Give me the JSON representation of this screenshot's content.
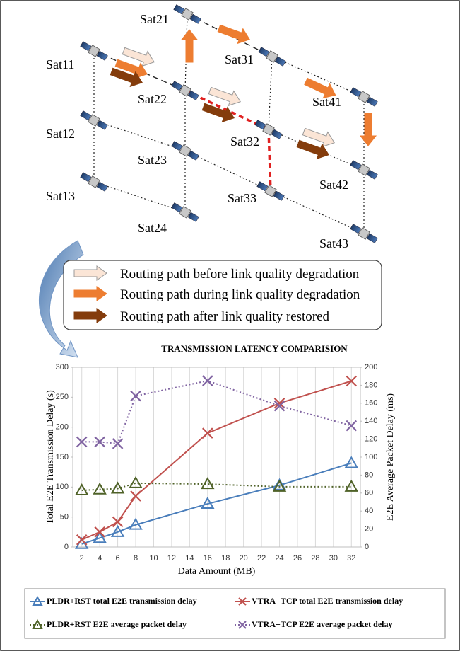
{
  "diagram": {
    "nodes": [
      {
        "label": "Sat21"
      },
      {
        "label": "Sat31"
      },
      {
        "label": "Sat41"
      },
      {
        "label": "Sat11"
      },
      {
        "label": "Sat22"
      },
      {
        "label": "Sat32"
      },
      {
        "label": "Sat42"
      },
      {
        "label": "Sat12"
      },
      {
        "label": "Sat23"
      },
      {
        "label": "Sat33"
      },
      {
        "label": "Sat43"
      },
      {
        "label": "Sat13"
      },
      {
        "label": "Sat24"
      }
    ],
    "legend": [
      "Routing path before link quality degradation",
      "Routing path during link quality degradation",
      "Routing path after link quality restored"
    ]
  },
  "chart_data": {
    "type": "line",
    "title": "TRANSMISSION LATENCY COMPARISION",
    "x_label": "Data Amount (MB)",
    "y_label": "Total E2E Transmission Delay (s)",
    "y2_label": "E2E Average Packet Delay (ms)",
    "x": [
      2,
      4,
      6,
      8,
      16,
      24,
      32
    ],
    "xlim": [
      1,
      33
    ],
    "xticks": [
      2,
      4,
      6,
      8,
      10,
      12,
      14,
      16,
      18,
      20,
      22,
      24,
      26,
      28,
      30,
      32
    ],
    "ylim": [
      0,
      300
    ],
    "yticks": [
      0,
      50,
      100,
      150,
      200,
      250,
      300
    ],
    "y2lim": [
      0,
      200
    ],
    "y2ticks": [
      0,
      20,
      40,
      60,
      80,
      100,
      120,
      140,
      160,
      180,
      200
    ],
    "grid": "x",
    "series": [
      {
        "name": "PLDR+RST total E2E transmission delay",
        "color": "#4a7ebb",
        "marker": "triangle",
        "dash": "solid",
        "values": [
          5,
          15,
          25,
          37,
          72,
          103,
          140
        ]
      },
      {
        "name": "VTRA+TCP total E2E transmission delay",
        "color": "#c0504d",
        "marker": "x",
        "dash": "solid",
        "values": [
          12,
          25,
          42,
          85,
          190,
          240,
          277
        ]
      },
      {
        "name": "PLDR+RST E2E average packet delay",
        "color": "#4f6228",
        "marker": "triangle",
        "dash": "dotted",
        "axis": "y2",
        "values": [
          63,
          64,
          65,
          71,
          70,
          67,
          67
        ]
      },
      {
        "name": "VTRA+TCP E2E average packet delay",
        "color": "#8064a2",
        "marker": "x",
        "dash": "dotted",
        "axis": "y2",
        "values": [
          117,
          117,
          115,
          168,
          185,
          157,
          135
        ]
      }
    ]
  }
}
